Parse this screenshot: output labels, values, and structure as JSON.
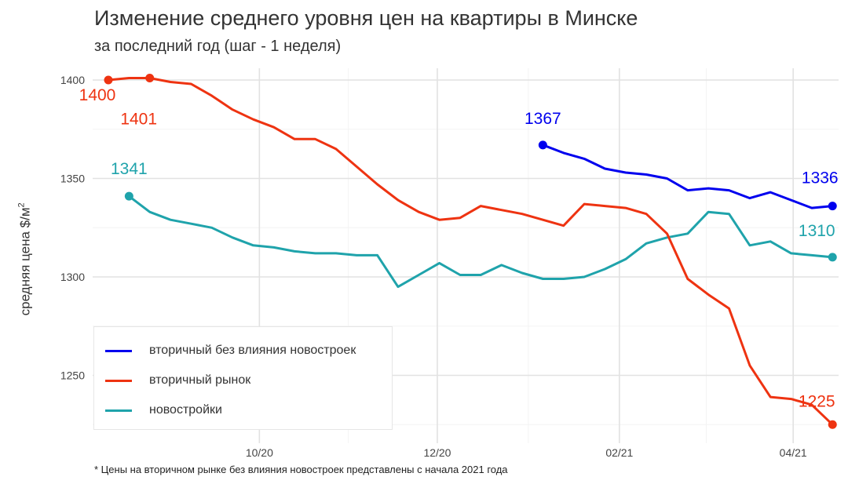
{
  "title": "Изменение среднего уровня цен на квартиры в Минске",
  "subtitle": "за последний год (шаг - 1 неделя)",
  "footnote": "* Цены на вторичном рынке без влияния новостроек представлены с начала 2021 года",
  "ylabel_main": "средняя цена $/м",
  "ylabel_sup": "2",
  "chart_data": {
    "type": "line",
    "title": "Изменение среднего уровня цен на квартиры в Минске",
    "subtitle": "за последний год (шаг - 1 неделя)",
    "xlabel": "",
    "ylabel": "средняя цена $/м2",
    "ylim": [
      1223,
      1403
    ],
    "x_ticks": [
      "10/20",
      "12/20",
      "02/21",
      "04/21"
    ],
    "y_ticks": [
      1250,
      1300,
      1350,
      1400
    ],
    "grid": true,
    "legend_position": "bottom-left",
    "series": [
      {
        "name": "вторичный без влияния новостроек",
        "color": "#0000ee",
        "start_week": 21,
        "values": [
          1367,
          1363,
          1360,
          1355,
          1353,
          1352,
          1350,
          1344,
          1345,
          1344,
          1340,
          1343,
          1339,
          1335,
          1336
        ],
        "labels": [
          {
            "week": 21,
            "text": "1367"
          },
          {
            "week": 35,
            "text": "1336"
          }
        ]
      },
      {
        "name": "вторичный рынок",
        "color": "#ee3311",
        "start_week": 0,
        "values": [
          1400,
          1401,
          1401,
          1399,
          1398,
          1392,
          1385,
          1380,
          1376,
          1370,
          1370,
          1365,
          1356,
          1347,
          1339,
          1333,
          1329,
          1330,
          1336,
          1334,
          1332,
          1329,
          1326,
          1337,
          1336,
          1335,
          1332,
          1322,
          1299,
          1291,
          1284,
          1255,
          1239,
          1238,
          1235,
          1225
        ],
        "labels": [
          {
            "week": 0,
            "text": "1400"
          },
          {
            "week": 2,
            "text": "1401"
          },
          {
            "week": 35,
            "text": "1225"
          }
        ]
      },
      {
        "name": "новостройки",
        "color": "#1fa3ab",
        "start_week": 1,
        "values": [
          1341,
          1333,
          1329,
          1327,
          1325,
          1320,
          1316,
          1315,
          1313,
          1312,
          1312,
          1311,
          1311,
          1295,
          1301,
          1307,
          1301,
          1301,
          1306,
          1302,
          1299,
          1299,
          1300,
          1304,
          1309,
          1317,
          1320,
          1322,
          1333,
          1332,
          1316,
          1318,
          1312,
          1311,
          1310
        ],
        "labels": [
          {
            "week": 1,
            "text": "1341"
          },
          {
            "week": 35,
            "text": "1310"
          }
        ]
      }
    ]
  }
}
